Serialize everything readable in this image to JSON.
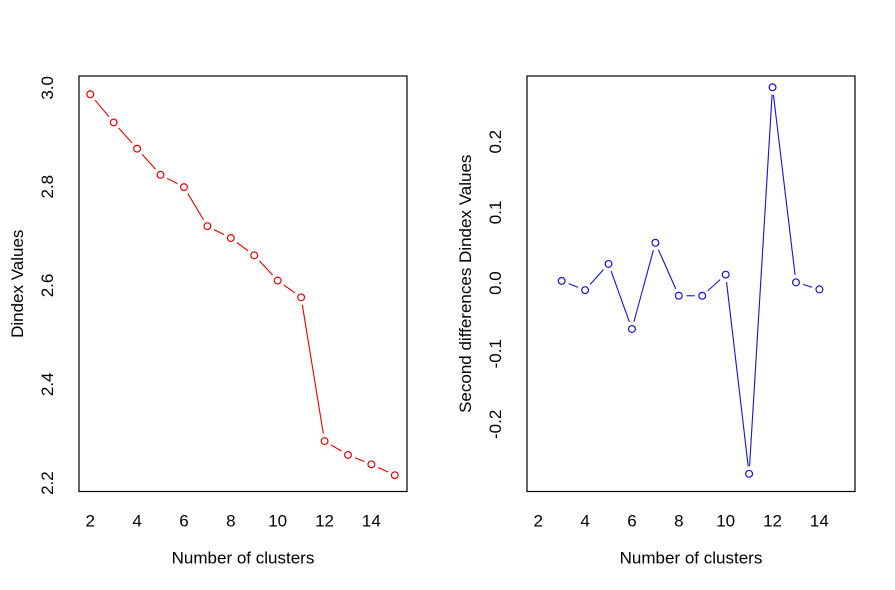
{
  "page": {
    "background": "#ffffff",
    "frame_color": "#000000",
    "text_color": "#000000"
  },
  "chart_data": [
    {
      "type": "line",
      "subtype": "points-and-lines (R type='b')",
      "marker": "open-circle",
      "color": "#e60000",
      "title": "",
      "xlabel": "Number of clusters",
      "ylabel": "Dindex Values",
      "x": [
        2,
        3,
        4,
        5,
        6,
        7,
        8,
        9,
        10,
        11,
        12,
        13,
        14,
        15
      ],
      "values": [
        2.987,
        2.93,
        2.877,
        2.824,
        2.799,
        2.72,
        2.696,
        2.661,
        2.61,
        2.576,
        2.285,
        2.257,
        2.238,
        2.216
      ],
      "x_ticks": [
        2,
        4,
        6,
        8,
        10,
        12,
        14
      ],
      "x_tick_labels": [
        "2",
        "4",
        "6",
        "8",
        "10",
        "12",
        "14"
      ],
      "y_ticks": [
        2.2,
        2.4,
        2.6,
        2.8,
        3.0
      ],
      "y_tick_labels": [
        "2.2",
        "2.4",
        "2.6",
        "2.8",
        "3.0"
      ],
      "xlim": [
        1.52,
        15.52
      ],
      "ylim": [
        2.183,
        3.024
      ],
      "grid": false,
      "legend": null
    },
    {
      "type": "line",
      "subtype": "points-and-lines (R type='b')",
      "marker": "open-circle",
      "color": "#1414cc",
      "title": "",
      "xlabel": "Number of clusters",
      "ylabel": "Second differences Dindex Values",
      "x": [
        3,
        4,
        5,
        6,
        7,
        8,
        9,
        10,
        11,
        12,
        13,
        14
      ],
      "values": [
        0.003,
        -0.01,
        0.027,
        -0.065,
        0.057,
        -0.018,
        -0.018,
        0.012,
        -0.27,
        0.277,
        0.001,
        -0.009
      ],
      "x_ticks": [
        2,
        4,
        6,
        8,
        10,
        12,
        14
      ],
      "x_tick_labels": [
        "2",
        "4",
        "6",
        "8",
        "10",
        "12",
        "14"
      ],
      "y_ticks": [
        -0.2,
        -0.1,
        0.0,
        0.1,
        0.2
      ],
      "y_tick_labels": [
        "-0.2",
        "-0.1",
        "0.0",
        "0.1",
        "0.2"
      ],
      "xlim": [
        1.52,
        15.52
      ],
      "ylim": [
        -0.295,
        0.293
      ],
      "grid": false,
      "legend": null
    }
  ]
}
